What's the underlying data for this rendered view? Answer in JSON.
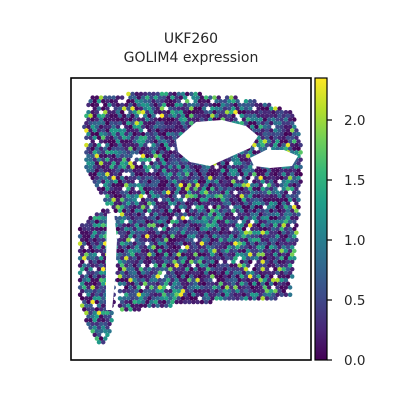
{
  "chart_data": {
    "type": "scatter",
    "subtype": "spatial-transcriptomics-hexbin",
    "title": "UKF260",
    "subtitle": "GOLIM4 expression",
    "xlabel": "",
    "ylabel": "",
    "axis_ticks_shown": false,
    "grid": false,
    "colormap": "viridis",
    "colorbar": {
      "position": "right",
      "range": [
        0.0,
        2.35
      ],
      "ticks": [
        0.0,
        0.5,
        1.0,
        1.5,
        2.0
      ],
      "tick_labels": [
        "0.0",
        "0.5",
        "1.0",
        "1.5",
        "2.0"
      ]
    },
    "expression_summary": {
      "min": 0.0,
      "max": 2.35,
      "typical_range": [
        0.0,
        1.5
      ],
      "dominant_value": 0.3
    }
  },
  "colors": {
    "viridis": [
      "#440154",
      "#482878",
      "#3e4a89",
      "#31688e",
      "#26828e",
      "#1f9e89",
      "#35b779",
      "#6ece58",
      "#b5de2b",
      "#fde725"
    ],
    "axes": "#000000",
    "text": "#262626",
    "background": "#ffffff"
  }
}
